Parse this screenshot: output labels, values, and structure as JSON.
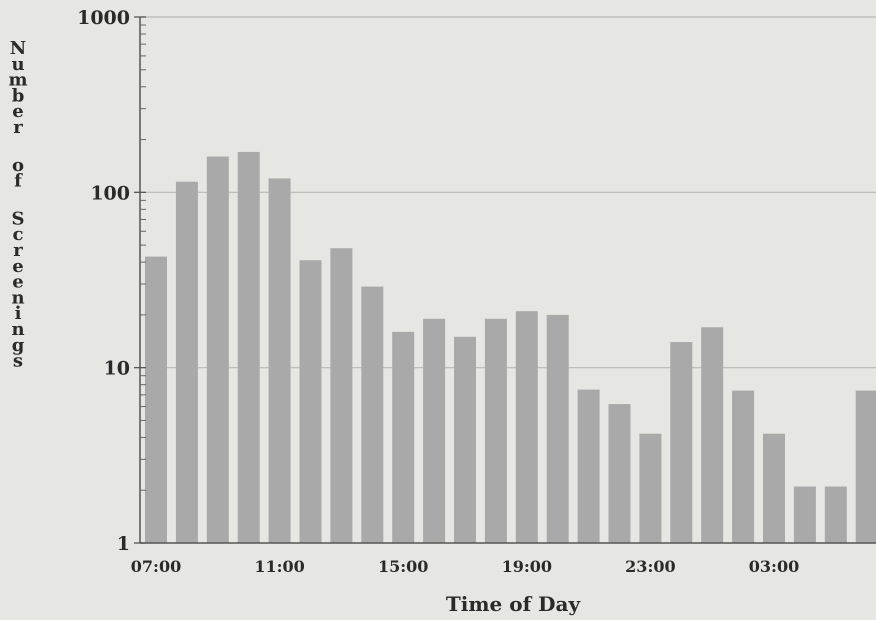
{
  "chart_data": {
    "type": "bar",
    "title": "",
    "xlabel": "Time of Day",
    "ylabel": "Number of Screenings",
    "yscale": "log",
    "ylim": [
      1,
      1000
    ],
    "y_ticks": [
      "1",
      "10",
      "100",
      "1000"
    ],
    "x_tick_labels": [
      {
        "label": "07:00",
        "index": 0
      },
      {
        "label": "11:00",
        "index": 4
      },
      {
        "label": "15:00",
        "index": 8
      },
      {
        "label": "19:00",
        "index": 12
      },
      {
        "label": "23:00",
        "index": 16
      },
      {
        "label": "03:00",
        "index": 20
      }
    ],
    "categories": [
      "07:00",
      "08:00",
      "09:00",
      "10:00",
      "11:00",
      "12:00",
      "13:00",
      "14:00",
      "15:00",
      "16:00",
      "17:00",
      "18:00",
      "19:00",
      "20:00",
      "21:00",
      "22:00",
      "23:00",
      "00:00",
      "01:00",
      "02:00",
      "03:00",
      "04:00",
      "05:00",
      "06:00"
    ],
    "values": [
      43,
      115,
      160,
      170,
      120,
      41,
      48,
      29,
      16,
      19,
      15,
      19,
      21,
      20,
      7.5,
      6.2,
      4.2,
      14,
      17,
      7.4,
      4.2,
      2.1,
      2.1,
      7.4
    ],
    "bar_color": "#a9a9a9",
    "grid": true
  }
}
